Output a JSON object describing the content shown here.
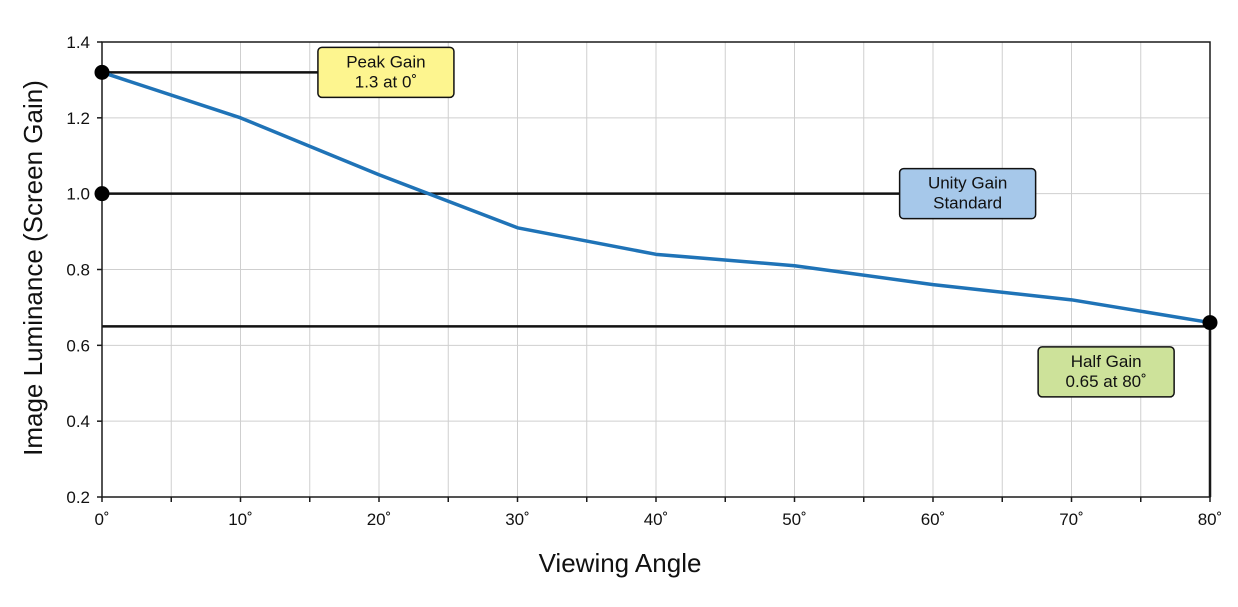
{
  "chart_data": {
    "type": "line",
    "xlabel": "Viewing Angle",
    "ylabel": "Image Luminance (Screen Gain)",
    "xlim": [
      0,
      80
    ],
    "ylim": [
      0.2,
      1.4
    ],
    "x_ticks": [
      0,
      10,
      20,
      30,
      40,
      50,
      60,
      70,
      80
    ],
    "x_tick_labels": [
      "0˚",
      "10˚",
      "20˚",
      "30˚",
      "40˚",
      "50˚",
      "60˚",
      "70˚",
      "80˚"
    ],
    "y_ticks": [
      0.2,
      0.4,
      0.6,
      0.8,
      1.0,
      1.2,
      1.4
    ],
    "y_tick_labels": [
      "0.2",
      "0.4",
      "0.6",
      "0.8",
      "1.0",
      "1.2",
      "1.4"
    ],
    "grid": true,
    "grid_x_step": 5,
    "series": [
      {
        "x": [
          0,
          10,
          20,
          30,
          40,
          50,
          60,
          70,
          80
        ],
        "y": [
          1.32,
          1.2,
          1.05,
          0.91,
          0.84,
          0.81,
          0.76,
          0.72,
          0.66
        ],
        "color": "#1f73b7"
      }
    ],
    "reference_lines": [
      {
        "y": 1.32,
        "x_from": 0,
        "x_to": 17
      },
      {
        "y": 1.0,
        "x_from": 0,
        "x_to": 58
      },
      {
        "y": 0.65,
        "x_from": 0,
        "x_to": 80
      }
    ],
    "marker_points": [
      {
        "x": 0,
        "y": 1.32
      },
      {
        "x": 0,
        "y": 1.0
      },
      {
        "x": 80,
        "y": 0.66
      }
    ],
    "annotations": [
      {
        "lines": [
          "Peak Gain",
          "1.3 at 0˚"
        ],
        "x": 20.5,
        "y": 1.32,
        "color": "#fdf58f"
      },
      {
        "lines": [
          "Unity Gain",
          "Standard"
        ],
        "x": 62.5,
        "y": 1.0,
        "color": "#a6c8ea"
      },
      {
        "lines": [
          "Half Gain",
          "0.65 at 80˚"
        ],
        "x": 72.5,
        "y": 0.53,
        "color": "#cde29a"
      }
    ]
  }
}
